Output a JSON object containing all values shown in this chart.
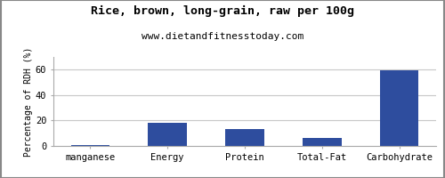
{
  "title": "Rice, brown, long-grain, raw per 100g",
  "subtitle": "www.dietandfitnesstoday.com",
  "categories": [
    "manganese",
    "Energy",
    "Protein",
    "Total-Fat",
    "Carbohydrate"
  ],
  "values": [
    0.5,
    18,
    13,
    6,
    59.5
  ],
  "bar_color": "#2e4d9e",
  "ylabel": "Percentage of RDH (%)",
  "ylim": [
    0,
    70
  ],
  "yticks": [
    0,
    20,
    40,
    60
  ],
  "background_color": "#ffffff",
  "plot_bg_color": "#ffffff",
  "title_fontsize": 9.5,
  "subtitle_fontsize": 8,
  "ylabel_fontsize": 7,
  "xtick_fontsize": 7.5,
  "ytick_fontsize": 7.5,
  "grid_color": "#c8c8c8",
  "border_color": "#aaaaaa"
}
